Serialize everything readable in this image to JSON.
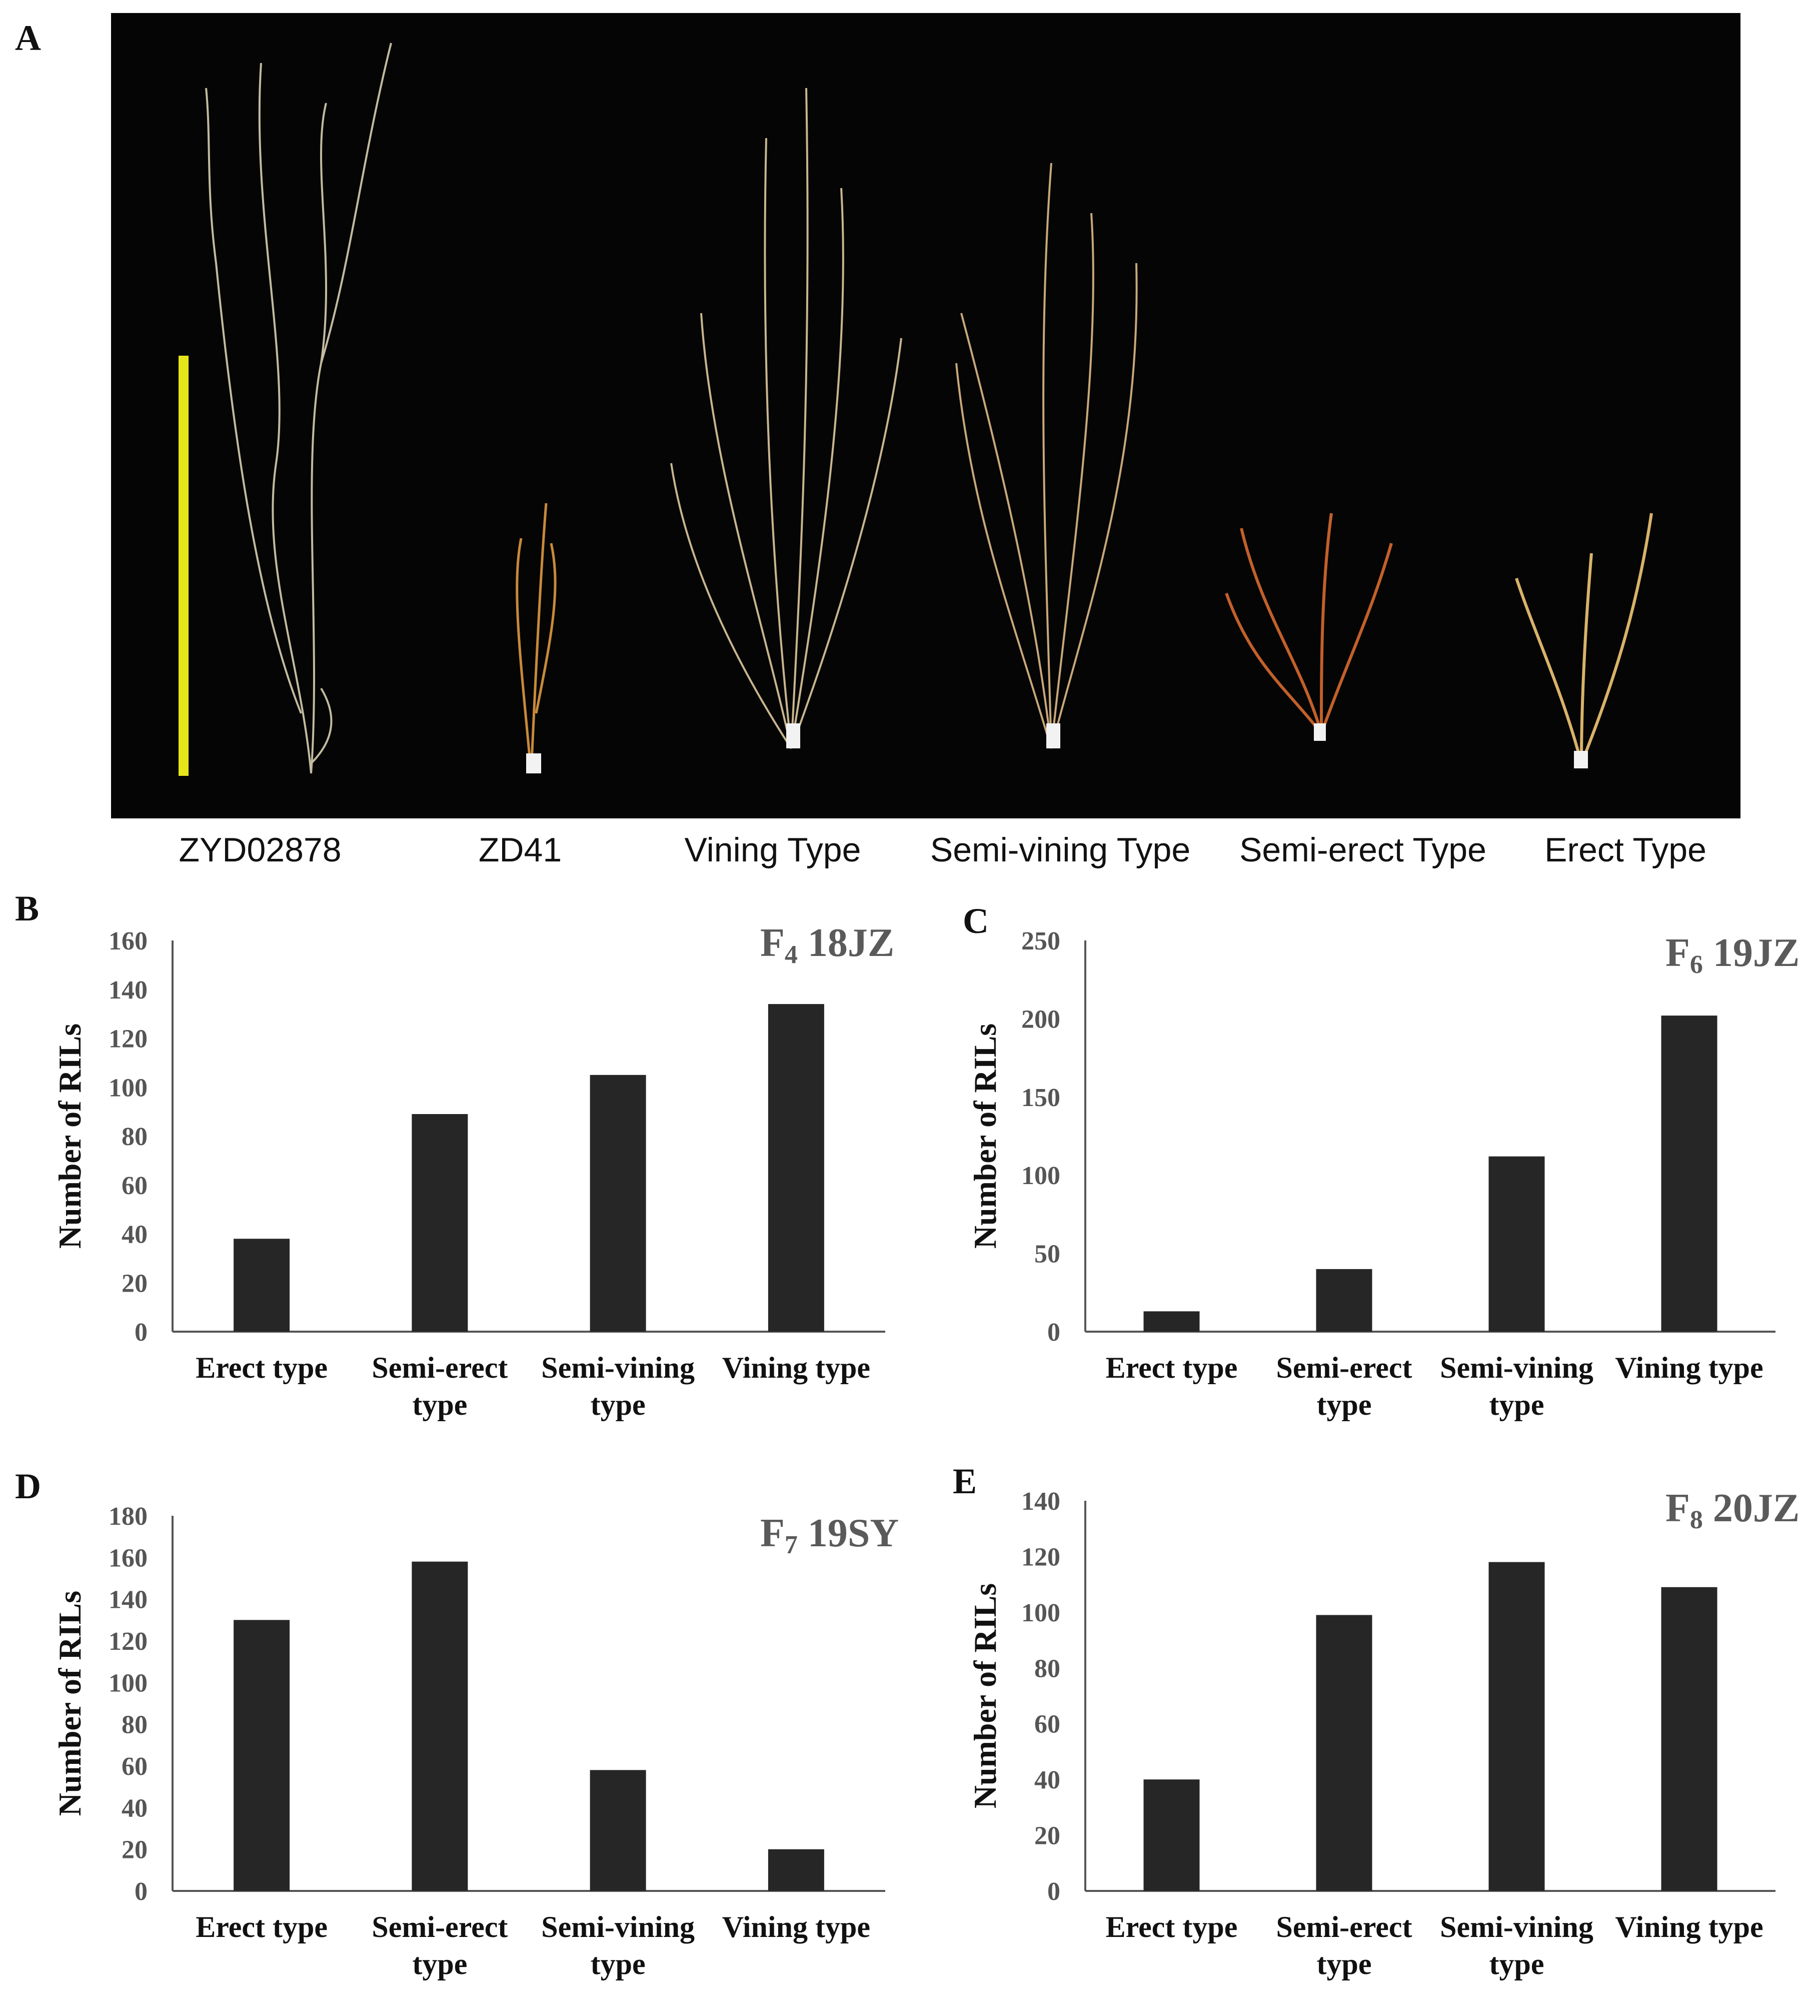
{
  "panels": {
    "a": "A",
    "b": "B",
    "c": "C",
    "d": "D",
    "e": "E"
  },
  "photo": {
    "description_icon": "plant-photo",
    "scale_bar_color": "#e6e51a",
    "labels": [
      "ZYD02878",
      "ZD41",
      "Vining Type",
      "Semi-vining Type",
      "Semi-erect Type",
      "Erect Type"
    ]
  },
  "colors": {
    "bar": "#262626",
    "axis": "#555555",
    "title": "#5a5a5a"
  },
  "chart_data": [
    {
      "panel": "B",
      "type": "bar",
      "title_main": "F",
      "title_sub": "4",
      "title_rest": " 18JZ",
      "ylabel": "Number of RILs",
      "categories": [
        [
          "Erect type"
        ],
        [
          "Semi-erect",
          "type"
        ],
        [
          "Semi-vining",
          "type"
        ],
        [
          "Vining type"
        ]
      ],
      "values": [
        38,
        89,
        105,
        134
      ],
      "ylim": [
        0,
        160
      ],
      "yticks": [
        0,
        20,
        40,
        60,
        80,
        100,
        120,
        140,
        160
      ]
    },
    {
      "panel": "C",
      "type": "bar",
      "title_main": "F",
      "title_sub": "6",
      "title_rest": " 19JZ",
      "ylabel": "Number of RILs",
      "categories": [
        [
          "Erect type"
        ],
        [
          "Semi-erect",
          "type"
        ],
        [
          "Semi-vining",
          "type"
        ],
        [
          "Vining type"
        ]
      ],
      "values": [
        13,
        40,
        112,
        202
      ],
      "ylim": [
        0,
        250
      ],
      "yticks": [
        0,
        50,
        100,
        150,
        200,
        250
      ]
    },
    {
      "panel": "D",
      "type": "bar",
      "title_main": "F",
      "title_sub": "7",
      "title_rest": " 19SY",
      "ylabel": "Number of RILs",
      "categories": [
        [
          "Erect type"
        ],
        [
          "Semi-erect",
          "type"
        ],
        [
          "Semi-vining",
          "type"
        ],
        [
          "Vining type"
        ]
      ],
      "values": [
        130,
        158,
        58,
        20
      ],
      "ylim": [
        0,
        180
      ],
      "yticks": [
        0,
        20,
        40,
        60,
        80,
        100,
        120,
        140,
        160,
        180
      ]
    },
    {
      "panel": "E",
      "type": "bar",
      "title_main": "F",
      "title_sub": "8",
      "title_rest": " 20JZ",
      "ylabel": "Number of RILs",
      "categories": [
        [
          "Erect type"
        ],
        [
          "Semi-erect",
          "type"
        ],
        [
          "Semi-vining",
          "type"
        ],
        [
          "Vining type"
        ]
      ],
      "values": [
        40,
        99,
        118,
        109
      ],
      "ylim": [
        0,
        140
      ],
      "yticks": [
        0,
        20,
        40,
        60,
        80,
        100,
        120,
        140
      ]
    }
  ]
}
